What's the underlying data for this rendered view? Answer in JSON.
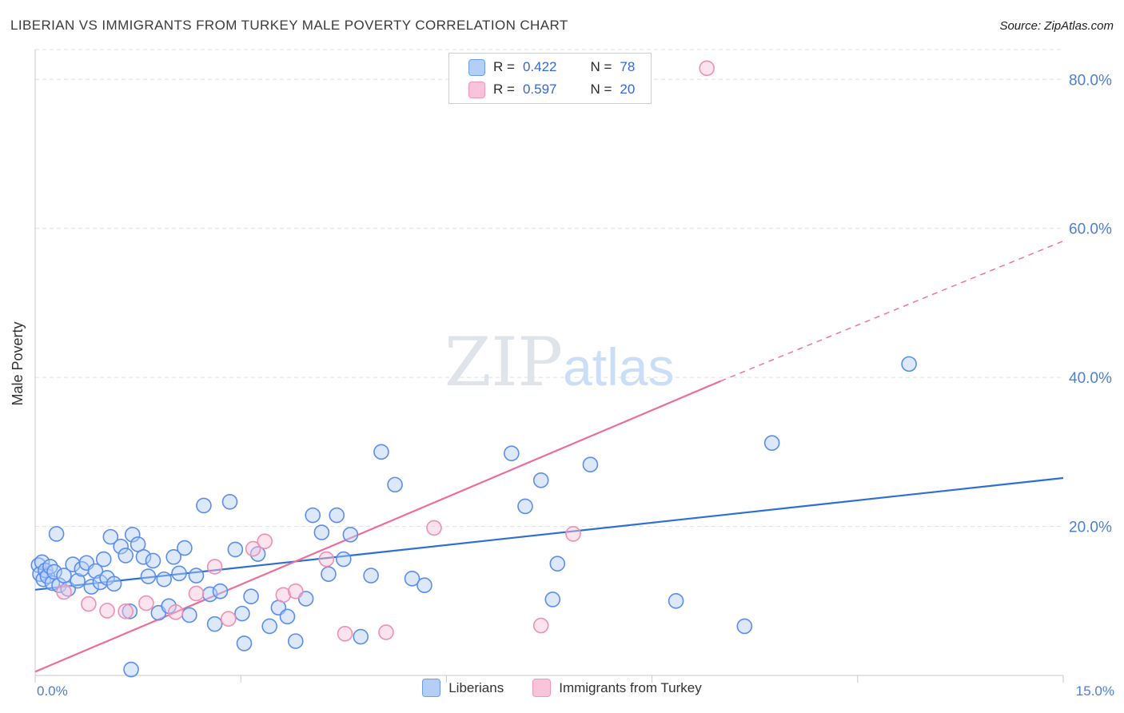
{
  "header": {
    "title": "LIBERIAN VS IMMIGRANTS FROM TURKEY MALE POVERTY CORRELATION CHART",
    "source": "Source: ZipAtlas.com"
  },
  "watermark": {
    "zip": "ZIP",
    "atlas": "atlas"
  },
  "legend": {
    "items": [
      {
        "r_label": "R =",
        "r_value": "0.422",
        "n_label": "N =",
        "n_value": "78"
      },
      {
        "r_label": "R =",
        "r_value": "0.597",
        "n_label": "N =",
        "n_value": "20"
      }
    ]
  },
  "chart_data": {
    "type": "scatter",
    "title": "LIBERIAN VS IMMIGRANTS FROM TURKEY MALE POVERTY CORRELATION CHART",
    "ylabel": "Male Poverty",
    "xlabel": "",
    "xlim": [
      0,
      15
    ],
    "ylim": [
      0,
      84
    ],
    "grid": "horizontal-dashed",
    "legend_position": "top-center-box and bottom-center",
    "x_tick_labels": [
      {
        "value": 0,
        "label": "0.0%"
      },
      {
        "value": 15,
        "label": "15.0%"
      }
    ],
    "x_axis_ticks": [
      0,
      3,
      6,
      9,
      12,
      15
    ],
    "y_ticks": [
      {
        "value": 20,
        "label": "20.0%"
      },
      {
        "value": 40,
        "label": "40.0%"
      },
      {
        "value": 60,
        "label": "60.0%"
      },
      {
        "value": 80,
        "label": "80.0%"
      }
    ],
    "colors": {
      "blue_fill": "#b3cef7",
      "blue_stroke": "#5b8def",
      "blue_trend": "#2e6fd4",
      "pink_fill": "#f9c4da",
      "pink_stroke": "#f08fb4",
      "pink_trend": "#ee6d97",
      "grid": "#e0e0e0",
      "axis": "#c9c9c9",
      "tick_label": "#4a7fd9"
    },
    "series": [
      {
        "name": "Liberians",
        "R": 0.422,
        "N": 78,
        "points": [
          [
            0.05,
            14.8
          ],
          [
            0.07,
            13.6
          ],
          [
            0.1,
            15.2
          ],
          [
            0.12,
            12.9
          ],
          [
            0.15,
            14.1
          ],
          [
            0.18,
            13.3
          ],
          [
            0.22,
            14.6
          ],
          [
            0.25,
            12.4
          ],
          [
            0.28,
            13.9
          ],
          [
            0.31,
            19.0
          ],
          [
            0.35,
            12.1
          ],
          [
            0.42,
            13.4
          ],
          [
            0.48,
            11.6
          ],
          [
            0.55,
            14.9
          ],
          [
            0.62,
            12.7
          ],
          [
            0.68,
            14.3
          ],
          [
            0.75,
            15.1
          ],
          [
            0.82,
            11.9
          ],
          [
            0.88,
            14.0
          ],
          [
            0.95,
            12.5
          ],
          [
            1.0,
            15.6
          ],
          [
            1.05,
            13.1
          ],
          [
            1.1,
            18.6
          ],
          [
            1.15,
            12.3
          ],
          [
            1.25,
            17.3
          ],
          [
            1.32,
            16.1
          ],
          [
            1.38,
            8.6
          ],
          [
            1.42,
            18.9
          ],
          [
            1.4,
            0.8
          ],
          [
            1.5,
            17.6
          ],
          [
            1.58,
            15.9
          ],
          [
            1.65,
            13.3
          ],
          [
            1.72,
            15.4
          ],
          [
            1.8,
            8.4
          ],
          [
            1.88,
            12.9
          ],
          [
            1.95,
            9.3
          ],
          [
            2.02,
            15.9
          ],
          [
            2.1,
            13.7
          ],
          [
            2.18,
            17.1
          ],
          [
            2.25,
            8.1
          ],
          [
            2.35,
            13.4
          ],
          [
            2.46,
            22.8
          ],
          [
            2.55,
            10.9
          ],
          [
            2.62,
            6.9
          ],
          [
            2.7,
            11.3
          ],
          [
            2.84,
            23.3
          ],
          [
            2.92,
            16.9
          ],
          [
            3.02,
            8.3
          ],
          [
            3.05,
            4.3
          ],
          [
            3.15,
            10.6
          ],
          [
            3.25,
            16.3
          ],
          [
            3.42,
            6.6
          ],
          [
            3.55,
            9.1
          ],
          [
            3.68,
            7.9
          ],
          [
            3.8,
            4.6
          ],
          [
            3.95,
            10.3
          ],
          [
            4.05,
            21.5
          ],
          [
            4.18,
            19.2
          ],
          [
            4.28,
            13.6
          ],
          [
            4.4,
            21.5
          ],
          [
            4.5,
            15.6
          ],
          [
            4.6,
            18.9
          ],
          [
            4.75,
            5.2
          ],
          [
            4.9,
            13.4
          ],
          [
            5.05,
            30.0
          ],
          [
            5.25,
            25.6
          ],
          [
            5.5,
            13.0
          ],
          [
            5.68,
            12.1
          ],
          [
            6.95,
            29.8
          ],
          [
            7.15,
            22.7
          ],
          [
            7.38,
            26.2
          ],
          [
            7.55,
            10.2
          ],
          [
            7.62,
            15.0
          ],
          [
            8.1,
            28.3
          ],
          [
            9.35,
            10.0
          ],
          [
            10.35,
            6.6
          ],
          [
            10.75,
            31.2
          ],
          [
            12.75,
            41.8
          ]
        ]
      },
      {
        "name": "Immigrants from Turkey",
        "R": 0.597,
        "N": 20,
        "points": [
          [
            0.42,
            11.2
          ],
          [
            0.78,
            9.6
          ],
          [
            1.05,
            8.7
          ],
          [
            1.32,
            8.6
          ],
          [
            1.62,
            9.7
          ],
          [
            2.05,
            8.5
          ],
          [
            2.35,
            11.0
          ],
          [
            2.62,
            14.6
          ],
          [
            2.82,
            7.6
          ],
          [
            3.18,
            17.0
          ],
          [
            3.35,
            18.0
          ],
          [
            3.62,
            10.8
          ],
          [
            3.8,
            11.3
          ],
          [
            4.25,
            15.6
          ],
          [
            4.52,
            5.6
          ],
          [
            5.12,
            5.8
          ],
          [
            5.82,
            19.8
          ],
          [
            7.38,
            6.7
          ],
          [
            7.85,
            19.0
          ],
          [
            9.8,
            81.5
          ]
        ]
      }
    ],
    "trend_lines": [
      {
        "series": "Liberians",
        "style": "solid",
        "x1": 0,
        "y1": 11.5,
        "x2": 15,
        "y2": 26.5
      },
      {
        "series": "Immigrants from Turkey",
        "style": "solid",
        "x1": 0,
        "y1": 0.5,
        "x2": 10,
        "y2": 39.5
      },
      {
        "series": "Immigrants from Turkey",
        "style": "dashed",
        "x1": 10,
        "y1": 39.5,
        "x2": 15,
        "y2": 58.3
      }
    ]
  }
}
